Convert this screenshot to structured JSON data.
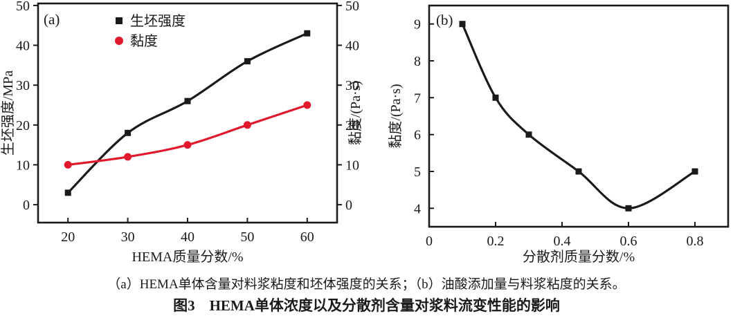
{
  "figure": {
    "caption_line": "（a）HEMA单体含量对料浆粘度和坯体强度的关系；（b）油酸添加量与料浆粘度的关系。",
    "title_line": "图3　HEMA单体浓度以及分散剂含量对浆料流变性能的影响"
  },
  "colors": {
    "axis": "#1a1a1a",
    "series_black": "#1a1a1a",
    "series_red": "#e2182c",
    "background": "#ffffff"
  },
  "chart_data": [
    {
      "id": "panel-a",
      "type": "line",
      "panel_label": "(a)",
      "xlabel": "HEMA质量分数/%",
      "ylabel_left": "生坯强度/MPa",
      "ylabel_right": "黏度/(Pa·s)",
      "x_ticks": [
        20,
        30,
        40,
        50,
        60
      ],
      "y_ticks": [
        0,
        10,
        20,
        30,
        40,
        50
      ],
      "xlim": [
        15,
        65
      ],
      "ylim": [
        -4.5,
        50.5
      ],
      "grid": false,
      "legend_position": "upper-left-inside",
      "legend": [
        {
          "label": "生坯强度",
          "marker": "square",
          "color": "#1a1a1a"
        },
        {
          "label": "黏度",
          "marker": "circle",
          "color": "#e2182c"
        }
      ],
      "series": [
        {
          "name": "生坯强度",
          "axis": "left",
          "marker": "square",
          "color": "#1a1a1a",
          "x": [
            20,
            30,
            40,
            50,
            60
          ],
          "y": [
            3,
            18,
            26,
            36,
            43
          ]
        },
        {
          "name": "黏度",
          "axis": "right",
          "marker": "circle",
          "color": "#e2182c",
          "x": [
            20,
            30,
            40,
            50,
            60
          ],
          "y": [
            10,
            12,
            15,
            20,
            25
          ]
        }
      ]
    },
    {
      "id": "panel-b",
      "type": "line",
      "panel_label": "(b)",
      "xlabel": "分散剂质量分数/%",
      "ylabel_left": "黏度/(Pa·s)",
      "x_ticks": [
        0,
        0.2,
        0.4,
        0.6,
        0.8
      ],
      "y_ticks": [
        4,
        5,
        6,
        7,
        8,
        9
      ],
      "xlim": [
        0,
        0.9
      ],
      "ylim": [
        3.5,
        9.5
      ],
      "grid": false,
      "series": [
        {
          "name": "黏度",
          "axis": "left",
          "marker": "square",
          "color": "#1a1a1a",
          "x": [
            0.1,
            0.2,
            0.3,
            0.45,
            0.6,
            0.8
          ],
          "y": [
            9,
            7,
            6,
            5,
            4,
            5
          ]
        }
      ]
    }
  ]
}
